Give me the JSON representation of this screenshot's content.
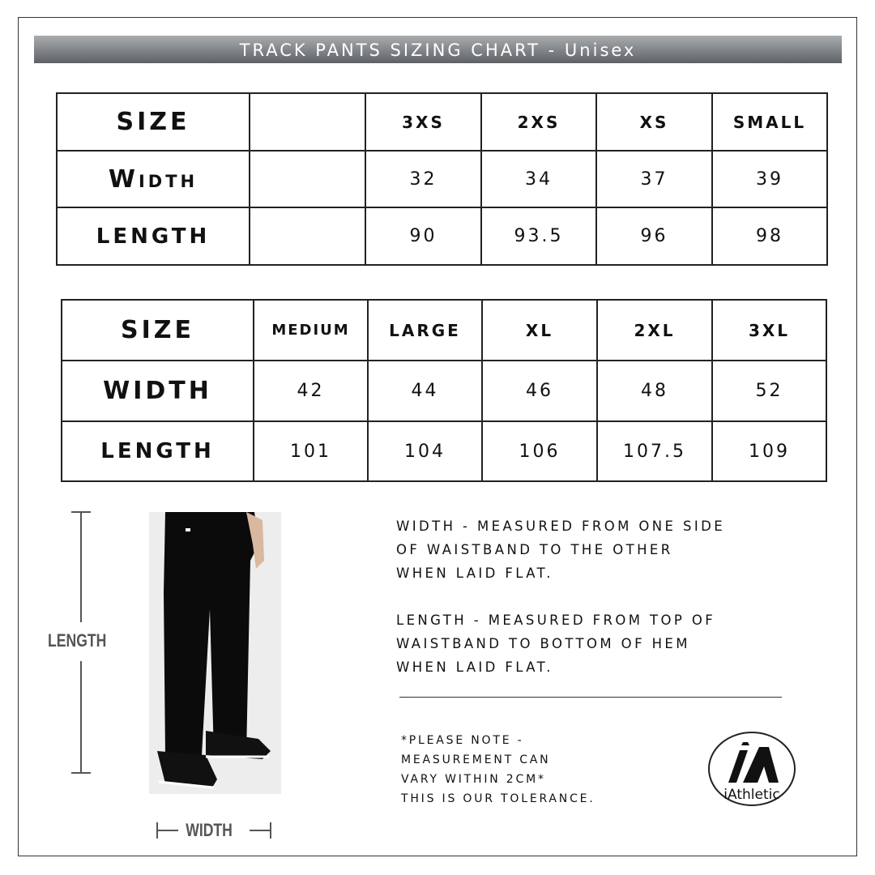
{
  "title": "TRACK PANTS SIZING CHART - Unisex",
  "table1": {
    "size_label": "SIZE",
    "width_label": "Width",
    "length_label": "LENGTH",
    "sizes": [
      "3XS",
      "2XS",
      "XS",
      "SMALL"
    ],
    "width": [
      "32",
      "34",
      "37",
      "39"
    ],
    "length": [
      "90",
      "93.5",
      "96",
      "98"
    ]
  },
  "table2": {
    "size_label": "SIZE",
    "width_label": "WIDTH",
    "length_label": "LENGTH",
    "sizes": [
      "MEDIUM",
      "LARGE",
      "XL",
      "2XL",
      "3XL"
    ],
    "width": [
      "42",
      "44",
      "46",
      "48",
      "52"
    ],
    "length": [
      "101",
      "104",
      "106",
      "107.5",
      "109"
    ]
  },
  "diagram": {
    "length_label": "LENGTH",
    "width_label": "WIDTH"
  },
  "notes": {
    "width_line1": "Width - measured from one side",
    "width_line2": "of waistband to the other",
    "width_line3": "when laid flat.",
    "length_line1": "Length - measured from top of",
    "length_line2": "waistband to bottom of hem",
    "length_line3": "when laid flat."
  },
  "tolerance": {
    "line1": "*Please note -",
    "line2": "measurement can",
    "line3": "vary within 2cm*",
    "line4": "this is our tolerance."
  },
  "logo": {
    "text": "iAthletic"
  }
}
